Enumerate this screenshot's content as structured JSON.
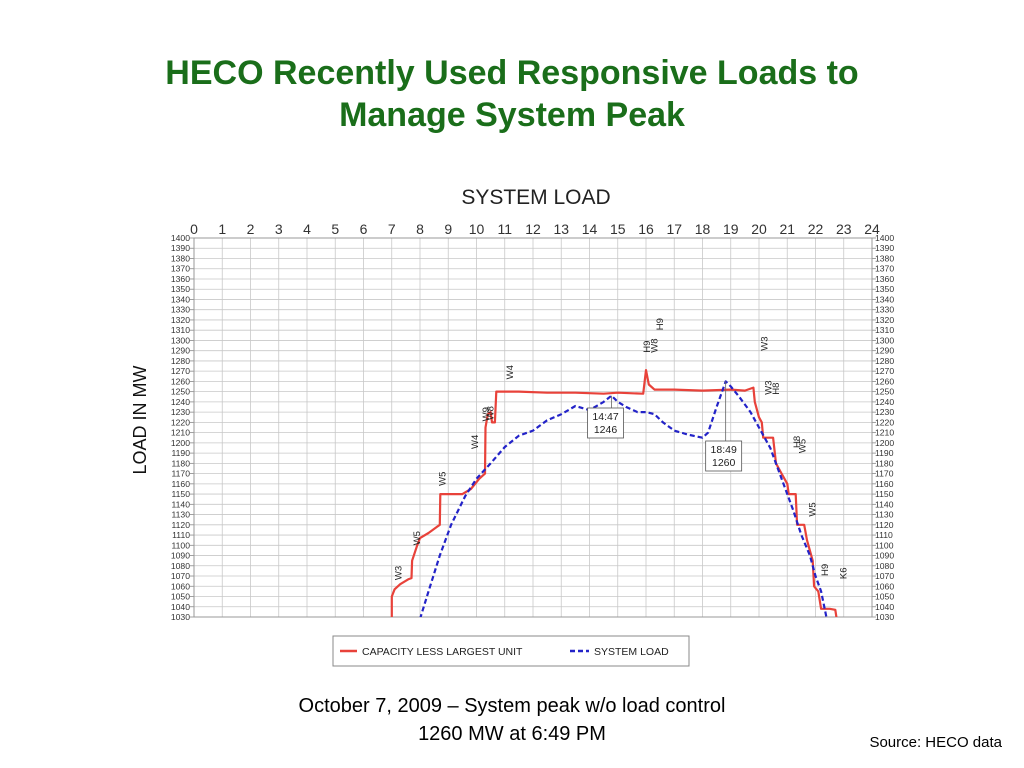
{
  "slide": {
    "title_line1": "HECO Recently Used Responsive Loads to",
    "title_line2": "Manage System Peak",
    "caption_line1": "October 7, 2009 – System peak w/o load control",
    "caption_line2": "1260 MW at 6:49 PM",
    "source": "Source: HECO data"
  },
  "colors": {
    "title": "#1a6e1a",
    "capacity": "#e8423a",
    "system_load": "#2323c8",
    "grid": "#c8c8c8"
  },
  "chart_data": {
    "type": "line",
    "title": "SYSTEM LOAD",
    "ylabel": "LOAD IN MW",
    "xlim": [
      0,
      24
    ],
    "ylim": [
      1030,
      1400
    ],
    "x_ticks": [
      "0",
      "1",
      "2",
      "3",
      "4",
      "5",
      "6",
      "7",
      "8",
      "9",
      "10",
      "11",
      "12",
      "13",
      "14",
      "15",
      "16",
      "17",
      "18",
      "19",
      "20",
      "21",
      "22",
      "23",
      "24"
    ],
    "y_ticks": [
      "1030",
      "1040",
      "1050",
      "1060",
      "1070",
      "1080",
      "1090",
      "1100",
      "1110",
      "1120",
      "1130",
      "1140",
      "1150",
      "1160",
      "1170",
      "1180",
      "1190",
      "1200",
      "1210",
      "1220",
      "1230",
      "1240",
      "1250",
      "1260",
      "1270",
      "1280",
      "1290",
      "1300",
      "1310",
      "1320",
      "1330",
      "1340",
      "1350",
      "1360",
      "1370",
      "1380",
      "1390",
      "1400"
    ],
    "grid": true,
    "legend_position": "bottom",
    "series": [
      {
        "name": "CAPACITY LESS LARGEST UNIT",
        "style": "solid",
        "points": [
          [
            7.0,
            1028
          ],
          [
            7.0,
            1050
          ],
          [
            7.1,
            1057
          ],
          [
            7.3,
            1062
          ],
          [
            7.6,
            1067
          ],
          [
            7.7,
            1068
          ],
          [
            7.72,
            1085
          ],
          [
            7.9,
            1100
          ],
          [
            8.0,
            1107
          ],
          [
            8.3,
            1112
          ],
          [
            8.6,
            1118
          ],
          [
            8.7,
            1120
          ],
          [
            8.72,
            1150
          ],
          [
            9.0,
            1150
          ],
          [
            9.5,
            1150
          ],
          [
            9.8,
            1155
          ],
          [
            10.1,
            1165
          ],
          [
            10.3,
            1170
          ],
          [
            10.32,
            1215
          ],
          [
            10.4,
            1228
          ],
          [
            10.5,
            1230
          ],
          [
            10.55,
            1220
          ],
          [
            10.65,
            1220
          ],
          [
            10.7,
            1250
          ],
          [
            11.5,
            1250
          ],
          [
            12.5,
            1249
          ],
          [
            13.5,
            1249
          ],
          [
            14.5,
            1248
          ],
          [
            15.0,
            1249
          ],
          [
            15.9,
            1248
          ],
          [
            16.0,
            1271
          ],
          [
            16.1,
            1257
          ],
          [
            16.3,
            1252
          ],
          [
            17.0,
            1252
          ],
          [
            18.0,
            1251
          ],
          [
            19.0,
            1252
          ],
          [
            19.5,
            1251
          ],
          [
            19.8,
            1254
          ],
          [
            19.85,
            1240
          ],
          [
            20.0,
            1225
          ],
          [
            20.1,
            1220
          ],
          [
            20.15,
            1205
          ],
          [
            20.5,
            1205
          ],
          [
            20.6,
            1180
          ],
          [
            20.8,
            1170
          ],
          [
            21.0,
            1160
          ],
          [
            21.05,
            1150
          ],
          [
            21.3,
            1150
          ],
          [
            21.35,
            1120
          ],
          [
            21.6,
            1120
          ],
          [
            21.7,
            1105
          ],
          [
            21.9,
            1085
          ],
          [
            21.95,
            1060
          ],
          [
            22.1,
            1055
          ],
          [
            22.2,
            1038
          ],
          [
            22.5,
            1038
          ],
          [
            22.7,
            1037
          ],
          [
            22.75,
            1028
          ]
        ]
      },
      {
        "name": "SYSTEM LOAD",
        "style": "dashed",
        "points": [
          [
            8.0,
            1028
          ],
          [
            8.3,
            1055
          ],
          [
            8.7,
            1090
          ],
          [
            9.1,
            1120
          ],
          [
            9.6,
            1148
          ],
          [
            10.0,
            1165
          ],
          [
            10.5,
            1180
          ],
          [
            11.0,
            1196
          ],
          [
            11.5,
            1207
          ],
          [
            12.0,
            1212
          ],
          [
            12.5,
            1222
          ],
          [
            13.0,
            1228
          ],
          [
            13.5,
            1236
          ],
          [
            14.0,
            1232
          ],
          [
            14.5,
            1240
          ],
          [
            14.78,
            1246
          ],
          [
            15.0,
            1240
          ],
          [
            15.3,
            1235
          ],
          [
            15.7,
            1230
          ],
          [
            16.0,
            1230
          ],
          [
            16.3,
            1228
          ],
          [
            16.6,
            1220
          ],
          [
            17.0,
            1212
          ],
          [
            17.5,
            1208
          ],
          [
            18.0,
            1205
          ],
          [
            18.2,
            1210
          ],
          [
            18.5,
            1235
          ],
          [
            18.82,
            1260
          ],
          [
            19.0,
            1255
          ],
          [
            19.3,
            1245
          ],
          [
            19.7,
            1230
          ],
          [
            20.0,
            1215
          ],
          [
            20.4,
            1195
          ],
          [
            20.8,
            1165
          ],
          [
            21.2,
            1135
          ],
          [
            21.5,
            1110
          ],
          [
            21.8,
            1090
          ],
          [
            22.0,
            1070
          ],
          [
            22.2,
            1055
          ],
          [
            22.4,
            1028
          ]
        ]
      }
    ],
    "annotations": [
      {
        "text": "W3",
        "x": 7.35,
        "y": 1066
      },
      {
        "text": "W5",
        "x": 8.0,
        "y": 1100
      },
      {
        "text": "W5",
        "x": 8.9,
        "y": 1158
      },
      {
        "text": "W4",
        "x": 10.05,
        "y": 1194
      },
      {
        "text": "W9",
        "x": 10.45,
        "y": 1221
      },
      {
        "text": "W8",
        "x": 10.6,
        "y": 1222
      },
      {
        "text": "W4",
        "x": 11.3,
        "y": 1262
      },
      {
        "text": "H9",
        "x": 16.15,
        "y": 1288
      },
      {
        "text": "W8",
        "x": 16.4,
        "y": 1288
      },
      {
        "text": "H9",
        "x": 16.6,
        "y": 1310
      },
      {
        "text": "W3",
        "x": 20.3,
        "y": 1290
      },
      {
        "text": "W3",
        "x": 20.45,
        "y": 1247
      },
      {
        "text": "H8",
        "x": 20.7,
        "y": 1247
      },
      {
        "text": "H8",
        "x": 21.45,
        "y": 1195
      },
      {
        "text": "W5",
        "x": 21.65,
        "y": 1190
      },
      {
        "text": "W5",
        "x": 22.0,
        "y": 1128
      },
      {
        "text": "H9",
        "x": 22.45,
        "y": 1070
      },
      {
        "text": "K6",
        "x": 23.1,
        "y": 1067
      }
    ],
    "callouts": [
      {
        "time": "14:47",
        "value": "1246",
        "x": 14.78,
        "y": 1246
      },
      {
        "time": "18:49",
        "value": "1260",
        "x": 18.82,
        "y": 1260
      }
    ]
  }
}
